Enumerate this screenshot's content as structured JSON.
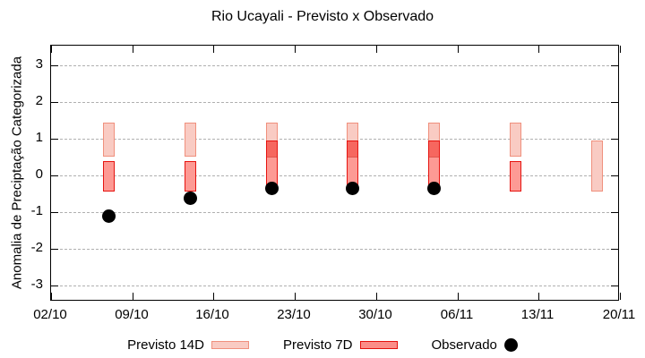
{
  "colors": {
    "previsto14_fill": "#f9cbc3",
    "previsto14_border": "#f0907d",
    "previsto7_fill": "#fd9a94",
    "previsto7_border": "#e61410",
    "overlap_fill": "#f6675f",
    "overlap_divider": "#e0564e",
    "observado": "#000000",
    "grid": "#b0b0b0",
    "frame": "#000000",
    "background": "#ffffff"
  },
  "chart_data": {
    "type": "bar",
    "title": "Rio Ucayali - Previsto x Observado",
    "xlabel": "",
    "ylabel": "Anomalia de Preciptação Categorizada",
    "ylim": [
      -3.5,
      3.5
    ],
    "yticks": [
      3,
      2,
      1,
      0,
      -1,
      -2,
      -3
    ],
    "xticks": [
      {
        "day": 0,
        "label": "02/10"
      },
      {
        "day": 7,
        "label": "09/10"
      },
      {
        "day": 14,
        "label": "16/10"
      },
      {
        "day": 21,
        "label": "23/10"
      },
      {
        "day": 28,
        "label": "30/10"
      },
      {
        "day": 35,
        "label": "06/11"
      },
      {
        "day": 42,
        "label": "13/11"
      },
      {
        "day": 49,
        "label": "20/11"
      }
    ],
    "x_span_days": 49,
    "grid": "horizontal-dashed",
    "legend_position": "bottom-center",
    "series": [
      {
        "name": "Previsto 14D",
        "type": "range_bar",
        "points": [
          {
            "day": 5,
            "date": "07/10",
            "low": 0.5,
            "high": 1.45
          },
          {
            "day": 12,
            "date": "14/10",
            "low": 0.5,
            "high": 1.45
          },
          {
            "day": 19,
            "date": "21/10",
            "low": 0.5,
            "high": 1.45
          },
          {
            "day": 26,
            "date": "28/10",
            "low": 0.5,
            "high": 1.45
          },
          {
            "day": 33,
            "date": "04/11",
            "low": 0.5,
            "high": 1.45
          },
          {
            "day": 40,
            "date": "11/11",
            "low": 0.5,
            "high": 1.45
          },
          {
            "day": 47,
            "date": "18/11",
            "low": -0.45,
            "high": 0.95
          }
        ]
      },
      {
        "name": "Previsto 7D",
        "type": "range_bar",
        "points": [
          {
            "day": 5,
            "date": "07/10",
            "low": -0.45,
            "high": 0.4
          },
          {
            "day": 12,
            "date": "14/10",
            "low": -0.45,
            "high": 0.4
          },
          {
            "day": 19,
            "date": "21/10",
            "low": -0.45,
            "high": 0.95
          },
          {
            "day": 26,
            "date": "28/10",
            "low": -0.45,
            "high": 0.95
          },
          {
            "day": 33,
            "date": "04/11",
            "low": -0.45,
            "high": 0.95
          },
          {
            "day": 40,
            "date": "11/11",
            "low": -0.45,
            "high": 0.4
          }
        ]
      },
      {
        "name": "Observado",
        "type": "scatter",
        "points": [
          {
            "day": 5,
            "date": "07/10",
            "value": -1.1
          },
          {
            "day": 12,
            "date": "14/10",
            "value": -0.63
          },
          {
            "day": 19,
            "date": "21/10",
            "value": -0.35
          },
          {
            "day": 26,
            "date": "28/10",
            "value": -0.35
          },
          {
            "day": 33,
            "date": "04/11",
            "value": -0.35
          }
        ]
      }
    ]
  }
}
